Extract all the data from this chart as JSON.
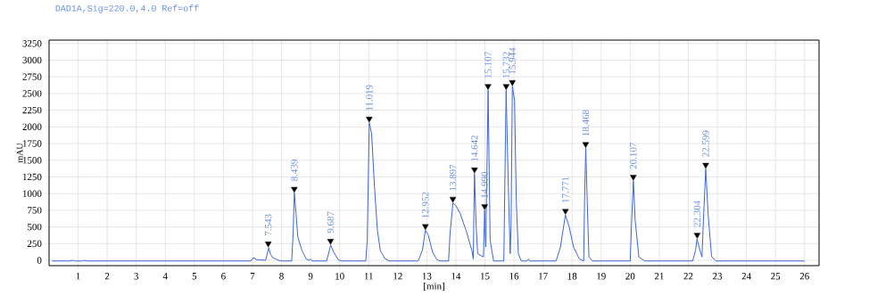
{
  "chart_data": {
    "type": "line",
    "title": "DAD1A,Sig=220.0,4.0  Ref=off",
    "xlabel": "[min]",
    "ylabel": "mAU",
    "xlim": [
      0,
      26.5
    ],
    "ylim": [
      -80,
      3300
    ],
    "xticks": [
      1,
      2,
      3,
      4,
      5,
      6,
      7,
      8,
      9,
      10,
      11,
      12,
      13,
      14,
      15,
      16,
      17,
      18,
      19,
      20,
      21,
      22,
      23,
      24,
      25,
      26
    ],
    "yticks": [
      0,
      250,
      500,
      750,
      1000,
      1250,
      1500,
      1750,
      2000,
      2250,
      2500,
      2750,
      3000,
      3250
    ],
    "grid": true,
    "series": [
      {
        "color": "#3c64dc",
        "x": [
          0.1,
          0.7,
          0.8,
          0.9,
          1.15,
          1.22,
          1.3,
          6.95,
          7.03,
          7.15,
          7.45,
          7.5,
          7.56,
          7.62,
          7.7,
          7.9,
          8.0,
          8.35,
          8.4,
          8.44,
          8.5,
          8.56,
          8.7,
          8.85,
          8.95,
          9.0,
          9.05,
          9.55,
          9.62,
          9.69,
          9.8,
          9.95,
          10.05,
          10.9,
          10.95,
          11.02,
          11.1,
          11.2,
          11.3,
          11.4,
          11.55,
          11.7,
          12.7,
          12.85,
          12.95,
          13.05,
          13.2,
          13.35,
          13.45,
          13.75,
          13.8,
          13.9,
          14.0,
          14.15,
          14.35,
          14.55,
          14.6,
          14.64,
          14.7,
          14.75,
          14.95,
          14.99,
          15.03,
          15.11,
          15.18,
          15.3,
          15.65,
          15.73,
          15.8,
          15.87,
          15.9,
          15.944,
          16.02,
          16.08,
          16.15,
          16.25,
          16.45,
          16.5,
          16.55,
          17.45,
          17.6,
          17.77,
          17.9,
          18.05,
          18.25,
          18.4,
          18.43,
          18.47,
          18.52,
          18.58,
          18.7,
          20.0,
          20.05,
          20.11,
          20.17,
          20.3,
          20.5,
          22.15,
          22.25,
          22.3,
          22.4,
          22.47,
          22.52,
          22.6,
          22.68,
          22.8,
          22.95,
          26.0
        ],
        "values": [
          -10,
          -10,
          0,
          -10,
          -10,
          0,
          -10,
          -10,
          40,
          10,
          0,
          80,
          190,
          90,
          40,
          0,
          -10,
          -10,
          400,
          1010,
          700,
          350,
          150,
          20,
          0,
          20,
          -10,
          -10,
          100,
          230,
          120,
          10,
          -10,
          -10,
          300,
          2060,
          1900,
          1100,
          450,
          150,
          30,
          -10,
          -10,
          150,
          450,
          380,
          120,
          10,
          -10,
          -10,
          400,
          860,
          820,
          700,
          450,
          150,
          20,
          1300,
          500,
          100,
          50,
          750,
          200,
          2550,
          300,
          -10,
          -10,
          2550,
          1200,
          100,
          500,
          2610,
          2400,
          900,
          100,
          -10,
          -10,
          20,
          -10,
          -10,
          200,
          680,
          500,
          200,
          20,
          -10,
          900,
          1680,
          900,
          50,
          -10,
          -10,
          600,
          1190,
          600,
          50,
          -10,
          -10,
          150,
          320,
          150,
          50,
          600,
          1370,
          700,
          60,
          -10,
          -10
        ]
      },
      {
        "type": "scatter",
        "color": "#000000",
        "marker": "triangle",
        "x": [
          7.543,
          8.439,
          9.687,
          11.019,
          12.952,
          13.897,
          14.642,
          14.99,
          15.107,
          15.732,
          15.944,
          17.771,
          18.468,
          20.107,
          22.304,
          22.599
        ],
        "values": [
          250,
          1070,
          290,
          2120,
          510,
          920,
          1360,
          810,
          2610,
          2610,
          2670,
          740,
          1740,
          1250,
          380,
          1430
        ]
      }
    ],
    "annotations": [
      {
        "text": "7.543",
        "x": 7.543,
        "y": 190
      },
      {
        "text": "8.439",
        "x": 8.439,
        "y": 1010
      },
      {
        "text": "9.687",
        "x": 9.687,
        "y": 230
      },
      {
        "text": "11.019",
        "x": 11.019,
        "y": 2060
      },
      {
        "text": "12.952",
        "x": 12.952,
        "y": 450
      },
      {
        "text": "13.897",
        "x": 13.897,
        "y": 860
      },
      {
        "text": "14.642",
        "x": 14.642,
        "y": 1300
      },
      {
        "text": "14.990",
        "x": 14.99,
        "y": 750
      },
      {
        "text": "15.107",
        "x": 15.107,
        "y": 2550
      },
      {
        "text": "15.732",
        "x": 15.732,
        "y": 2550
      },
      {
        "text": "15.944",
        "x": 15.944,
        "y": 2610
      },
      {
        "text": "17.771",
        "x": 17.771,
        "y": 680
      },
      {
        "text": "18.468",
        "x": 18.468,
        "y": 1680
      },
      {
        "text": "20.107",
        "x": 20.107,
        "y": 1190
      },
      {
        "text": "22.304",
        "x": 22.304,
        "y": 320
      },
      {
        "text": "22.599",
        "x": 22.599,
        "y": 1370
      }
    ]
  }
}
